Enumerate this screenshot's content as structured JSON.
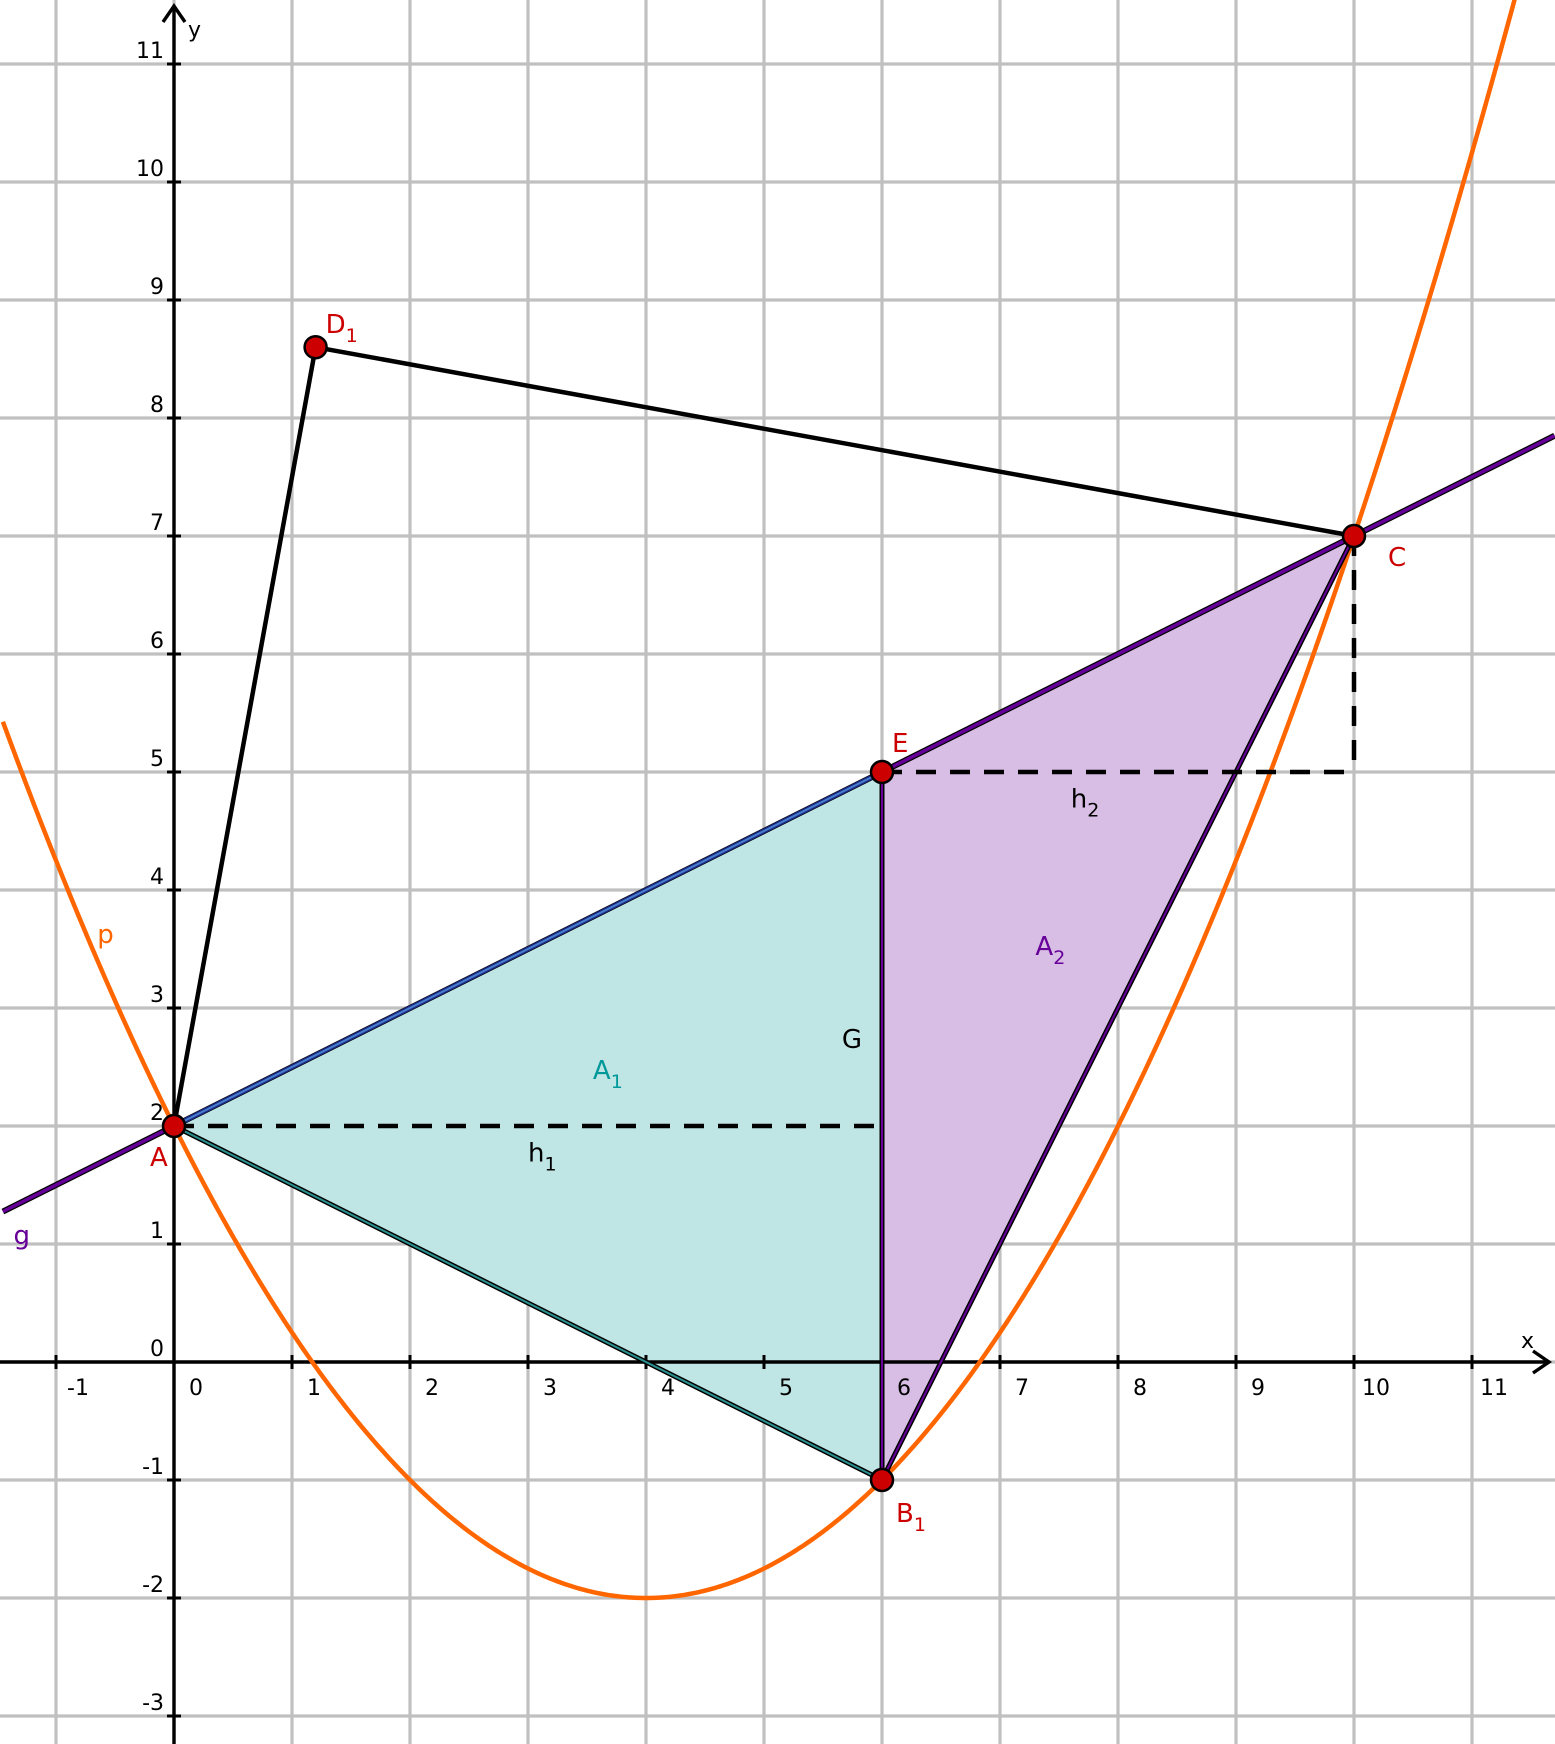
{
  "axes": {
    "x_name": "x",
    "y_name": "y",
    "x_ticks": [
      "-1",
      "0",
      "1",
      "2",
      "3",
      "4",
      "5",
      "6",
      "7",
      "8",
      "9",
      "10",
      "11"
    ],
    "y_ticks": [
      "-3",
      "-2",
      "-1",
      "0",
      "1",
      "2",
      "3",
      "4",
      "5",
      "6",
      "7",
      "8",
      "9",
      "10",
      "11"
    ],
    "xlim": [
      -1.45,
      11.7
    ],
    "ylim": [
      -3.3,
      11.7
    ],
    "grid": true
  },
  "colors": {
    "grid": "#c0c0c0",
    "parabola": "#ff6600",
    "line_g": "#660099",
    "point_fill": "#cc0000",
    "point_label": "#cc0000",
    "A1_fill": "#bfe5e5",
    "A1_label": "#009999",
    "A2_fill": "#d8bde5",
    "A2_label": "#660099",
    "polygon": "#000000"
  },
  "points": [
    {
      "id": "A",
      "label": "A",
      "sub": "",
      "x": 0,
      "y": 2
    },
    {
      "id": "B1",
      "label": "B",
      "sub": "1",
      "x": 6,
      "y": -1
    },
    {
      "id": "C",
      "label": "C",
      "sub": "",
      "x": 10,
      "y": 7
    },
    {
      "id": "D1",
      "label": "D",
      "sub": "1",
      "x": 1.2,
      "y": 8.6
    },
    {
      "id": "E",
      "label": "E",
      "sub": "",
      "x": 6,
      "y": 5
    }
  ],
  "curves": {
    "parabola_p": {
      "label": "p",
      "vertex": [
        4,
        -2
      ],
      "a": 0.25
    },
    "line_g": {
      "label": "g",
      "slope": 0.5,
      "intercept": 2
    }
  },
  "regions": {
    "A1": {
      "label": "A",
      "sub": "1",
      "vertices": [
        "A",
        "E",
        "B1"
      ]
    },
    "A2": {
      "label": "A",
      "sub": "2",
      "vertices": [
        "E",
        "C",
        "B1"
      ]
    }
  },
  "segment_G": {
    "label": "G"
  },
  "heights": {
    "h1": {
      "label": "h",
      "sub": "1"
    },
    "h2": {
      "label": "h",
      "sub": "2"
    }
  },
  "quadrilateral": [
    "A",
    "B1",
    "C",
    "D1"
  ]
}
